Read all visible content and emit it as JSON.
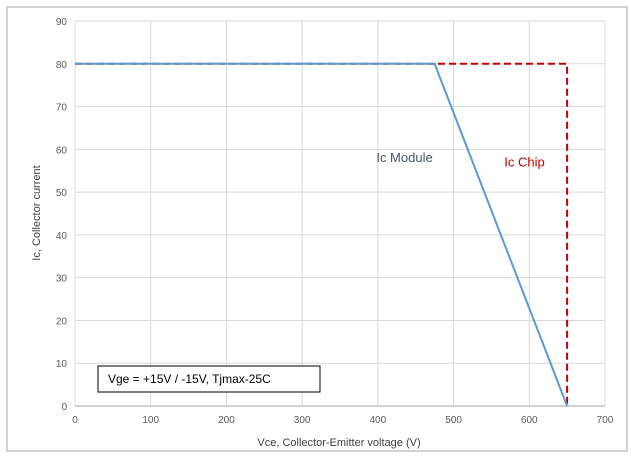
{
  "chart_data": {
    "type": "line",
    "xlabel": "Vce, Collector-Emitter voltage (V)",
    "ylabel": "Ic, Collector current",
    "xlim": [
      0,
      700
    ],
    "ylim": [
      0,
      90
    ],
    "x_ticks": [
      0,
      100,
      200,
      300,
      400,
      500,
      600,
      700
    ],
    "y_ticks": [
      0,
      10,
      20,
      30,
      40,
      50,
      60,
      70,
      80,
      90
    ],
    "grid": true,
    "series": [
      {
        "name": "Ic Module",
        "color": "#5B9BD5",
        "style": "solid",
        "points": [
          [
            0,
            80
          ],
          [
            475,
            80
          ],
          [
            650,
            0
          ]
        ]
      },
      {
        "name": "Ic Chip",
        "color": "#C00000",
        "style": "dashed",
        "points": [
          [
            0,
            80
          ],
          [
            650,
            80
          ],
          [
            650,
            0
          ]
        ]
      }
    ],
    "annotations": [
      {
        "text": "Ic Module",
        "x": 398,
        "y": 57,
        "color": "#44546A"
      },
      {
        "text": "Ic Chip",
        "x": 567,
        "y": 56,
        "color": "#C00000"
      }
    ],
    "text_box": {
      "text": "Vge = +15V / -15V,  Tjmax-25C",
      "x": 198,
      "y": 6
    }
  }
}
